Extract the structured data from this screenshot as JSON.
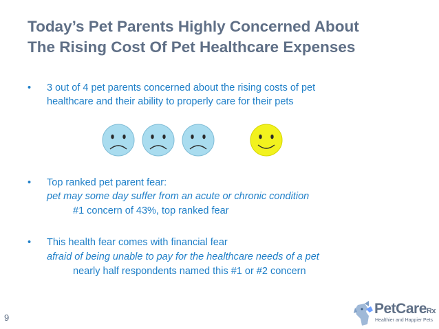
{
  "slide": {
    "title_line1": "Today’s Pet Parents Highly Concerned About",
    "title_line2": "The Rising Cost Of Pet Healthcare Expenses",
    "page_number": "9"
  },
  "bullets": [
    {
      "symbol": "•",
      "line1": "3 out of 4 pet parents concerned about the rising costs of pet",
      "line2": "healthcare and their ability to properly care for their pets"
    },
    {
      "symbol": "•",
      "line1": "Top ranked pet parent fear:",
      "italic": "pet may some day suffer from an acute or chronic condition",
      "detail": "#1 concern of 43%, top ranked fear"
    },
    {
      "symbol": "•",
      "line1": "This health fear comes with financial fear",
      "italic": "afraid of being unable to pay for the healthcare needs of a pet",
      "detail": "nearly half respondents named this #1 or #2 concern"
    }
  ],
  "faces": [
    {
      "mood": "sad",
      "color": "#a9dcef"
    },
    {
      "mood": "sad",
      "color": "#a9dcef"
    },
    {
      "mood": "sad",
      "color": "#a9dcef"
    },
    {
      "mood": "happy",
      "color": "#f2f21e"
    }
  ],
  "logo": {
    "brand": "PetCare",
    "suffix": "Rx",
    "tagline": "Healthier and Happier Pets"
  },
  "colors": {
    "title": "#5f6f86",
    "text": "#1e7fc8",
    "sad_face": "#a9dcef",
    "happy_face": "#f2f21e"
  }
}
